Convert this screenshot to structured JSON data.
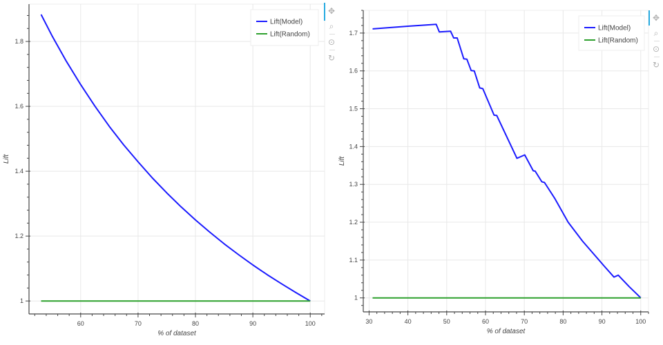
{
  "colors": {
    "model_line": "#1a1aff",
    "random_line": "#2ca02c",
    "grid": "#e8e8e8",
    "axis": "#444444",
    "toolbar_active": "#26aae1"
  },
  "toolbar": {
    "icons": [
      "pan-icon",
      "box-zoom-icon",
      "wheel-zoom-icon",
      "reset-icon"
    ],
    "glyphs": [
      "✥",
      "⌕",
      "⊙",
      "↻"
    ]
  },
  "chart_data": [
    {
      "type": "line",
      "title": "",
      "xlabel": "% of dataset",
      "ylabel": "Lift",
      "xlim": [
        51,
        102.5
      ],
      "ylim": [
        0.96,
        1.915
      ],
      "xticks": [
        60,
        70,
        80,
        90,
        100
      ],
      "xtick_labels": [
        "60",
        "70",
        "80",
        "90",
        "100"
      ],
      "yticks": [
        1.0,
        1.2,
        1.4,
        1.6,
        1.8
      ],
      "ytick_labels": [
        "1",
        "1.2",
        "1.4",
        "1.6",
        "1.8"
      ],
      "grid": true,
      "legend_position": "top-right",
      "legend": [
        "Lift(Model)",
        "Lift(Random)"
      ],
      "series": [
        {
          "name": "Lift(Model)",
          "x": [
            53.1,
            55,
            57.5,
            60,
            62.5,
            65,
            67.5,
            70,
            72.5,
            75,
            77.5,
            80,
            82.5,
            85,
            87.5,
            90,
            92.5,
            95,
            97.5,
            100
          ],
          "y": [
            1.883,
            1.818,
            1.739,
            1.667,
            1.6,
            1.538,
            1.481,
            1.429,
            1.379,
            1.333,
            1.29,
            1.25,
            1.212,
            1.176,
            1.143,
            1.111,
            1.081,
            1.053,
            1.026,
            1.0
          ]
        },
        {
          "name": "Lift(Random)",
          "x": [
            53.1,
            100
          ],
          "y": [
            1.0,
            1.0
          ]
        }
      ]
    },
    {
      "type": "line",
      "title": "",
      "xlabel": "% of dataset",
      "ylabel": "Lift",
      "xlim": [
        28.5,
        102
      ],
      "ylim": [
        0.963,
        1.76
      ],
      "xticks": [
        30,
        40,
        50,
        60,
        70,
        80,
        90,
        100
      ],
      "xtick_labels": [
        "30",
        "40",
        "50",
        "60",
        "70",
        "80",
        "90",
        "100"
      ],
      "yticks": [
        1.0,
        1.1,
        1.2,
        1.3,
        1.4,
        1.5,
        1.6,
        1.7
      ],
      "ytick_labels": [
        "1",
        "1.1",
        "1.2",
        "1.3",
        "1.4",
        "1.5",
        "1.6",
        "1.7"
      ],
      "grid": true,
      "legend_position": "top-right",
      "legend": [
        "Lift(Model)",
        "Lift(Random)"
      ],
      "series": [
        {
          "name": "Lift(Model)",
          "x": [
            30.9,
            40,
            47.3,
            48.1,
            51.0,
            51.8,
            52.7,
            54.4,
            55.2,
            56.3,
            57.1,
            58.5,
            59.3,
            62.2,
            62.9,
            68.1,
            70.1,
            72.3,
            72.8,
            74.5,
            75.2,
            77.9,
            81.3,
            85.0,
            90.5,
            93.1,
            94.2,
            97.0,
            100
          ],
          "y": [
            1.711,
            1.718,
            1.723,
            1.703,
            1.705,
            1.687,
            1.687,
            1.632,
            1.631,
            1.601,
            1.6,
            1.555,
            1.553,
            1.483,
            1.482,
            1.369,
            1.378,
            1.336,
            1.335,
            1.307,
            1.305,
            1.262,
            1.2,
            1.15,
            1.085,
            1.055,
            1.06,
            1.03,
            1.0
          ]
        },
        {
          "name": "Lift(Random)",
          "x": [
            30.9,
            100
          ],
          "y": [
            1.0,
            1.0
          ]
        }
      ]
    }
  ]
}
